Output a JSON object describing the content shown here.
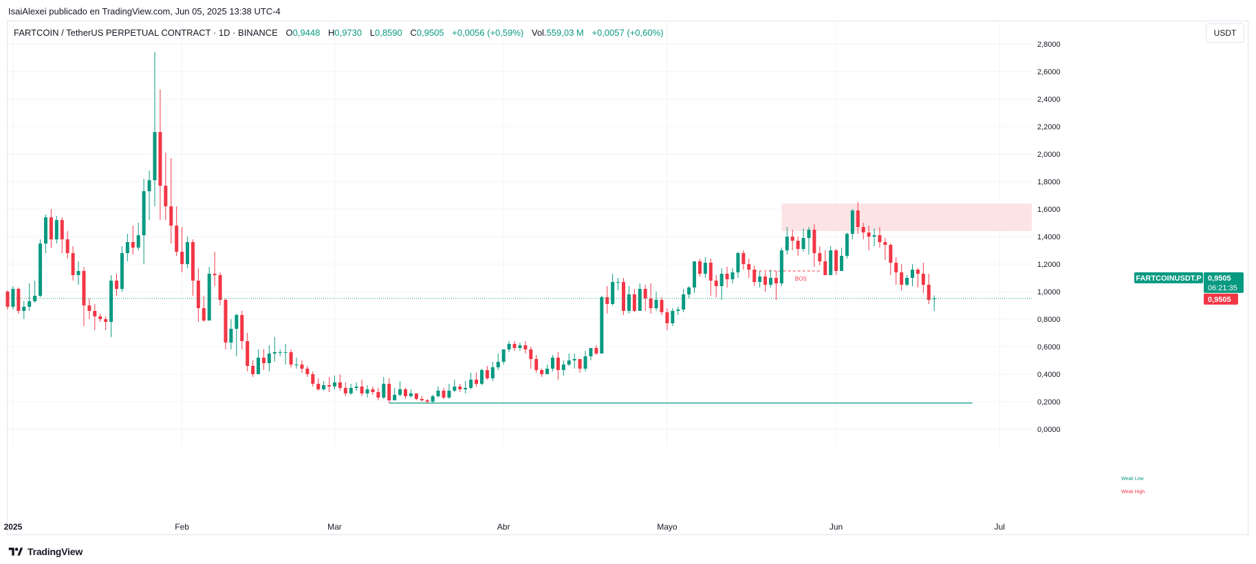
{
  "header": {
    "publisher_line": "IsaiAlexei publicado en TradingView.com, Jun 05, 2025 13:38 UTC-4"
  },
  "legend": {
    "symbol": "FARTCOIN / TetherUS PERPETUAL CONTRACT · 1D · BINANCE",
    "o_label": "O",
    "o": "0,9448",
    "h_label": "H",
    "h": "0,9730",
    "l_label": "L",
    "l": "0,8590",
    "c_label": "C",
    "c": "0,9505",
    "change": "+0,0056 (+0,59%)",
    "vol_label": "Vol.",
    "vol": "559,03 M",
    "vol_change": "+0,0057 (+0,60%)"
  },
  "toolbar": {
    "unit_label": "USDT"
  },
  "footer": {
    "brand": "TradingView"
  },
  "colors": {
    "up": "#089981",
    "down": "#f23645",
    "grid": "#f0f3fa",
    "zone_fill": "#fce4e6",
    "text": "#131722"
  },
  "chart_data": {
    "type": "candlestick",
    "title": "FARTCOIN / TetherUS PERPETUAL CONTRACT · 1D · BINANCE",
    "ylim": [
      0,
      2.8
    ],
    "y_ticks": [
      "2,8000",
      "2,6000",
      "2,4000",
      "2,2000",
      "2,0000",
      "1,8000",
      "1,6000",
      "1,4000",
      "1,2000",
      "1,0000",
      "0,8000",
      "0,6000",
      "0,4000",
      "0,2000",
      "0,0000"
    ],
    "x_ticks": [
      {
        "label": "2025",
        "date": "2025-01-01",
        "bold": true
      },
      {
        "label": "Feb",
        "date": "2025-02-01"
      },
      {
        "label": "Mar",
        "date": "2025-03-01"
      },
      {
        "label": "Abr",
        "date": "2025-04-01"
      },
      {
        "label": "Mayo",
        "date": "2025-05-01"
      },
      {
        "label": "Jun",
        "date": "2025-06-01"
      },
      {
        "label": "Jul",
        "date": "2025-07-01"
      }
    ],
    "x_range": [
      "2024-12-31",
      "2025-07-05"
    ],
    "grid": true,
    "start_date": "2024-12-31",
    "candles": [
      [
        1.0,
        0.89,
        1.01,
        0.87
      ],
      [
        0.89,
        1.02,
        1.04,
        0.87
      ],
      [
        1.02,
        0.86,
        1.03,
        0.84
      ],
      [
        0.86,
        0.89,
        0.93,
        0.8
      ],
      [
        0.89,
        0.93,
        1.06,
        0.86
      ],
      [
        0.93,
        0.97,
        1.08,
        0.92
      ],
      [
        0.97,
        1.35,
        1.38,
        0.96
      ],
      [
        1.35,
        1.54,
        1.56,
        1.28
      ],
      [
        1.54,
        1.38,
        1.6,
        1.32
      ],
      [
        1.38,
        1.52,
        1.55,
        1.35
      ],
      [
        1.52,
        1.38,
        1.54,
        1.28
      ],
      [
        1.38,
        1.28,
        1.44,
        1.24
      ],
      [
        1.28,
        1.12,
        1.33,
        1.08
      ],
      [
        1.12,
        1.15,
        1.22,
        1.05
      ],
      [
        1.15,
        0.9,
        1.18,
        0.75
      ],
      [
        0.9,
        0.86,
        0.95,
        0.8
      ],
      [
        0.86,
        0.82,
        0.91,
        0.72
      ],
      [
        0.82,
        0.8,
        0.84,
        0.78
      ],
      [
        0.8,
        0.78,
        0.82,
        0.72
      ],
      [
        0.78,
        1.08,
        1.12,
        0.67
      ],
      [
        1.08,
        1.02,
        1.13,
        0.97
      ],
      [
        1.02,
        1.28,
        1.33,
        1.0
      ],
      [
        1.28,
        1.36,
        1.42,
        1.22
      ],
      [
        1.36,
        1.32,
        1.48,
        1.27
      ],
      [
        1.32,
        1.41,
        1.5,
        1.3
      ],
      [
        1.41,
        1.73,
        1.82,
        1.2
      ],
      [
        1.73,
        1.81,
        1.88,
        1.52
      ],
      [
        1.81,
        2.16,
        2.74,
        1.62
      ],
      [
        2.16,
        1.77,
        2.47,
        1.52
      ],
      [
        1.77,
        1.62,
        2.01,
        1.52
      ],
      [
        1.62,
        1.48,
        1.97,
        1.35
      ],
      [
        1.48,
        1.29,
        1.62,
        1.26
      ],
      [
        1.29,
        1.2,
        1.47,
        1.14
      ],
      [
        1.2,
        1.36,
        1.4,
        1.17
      ],
      [
        1.36,
        1.08,
        1.38,
        0.97
      ],
      [
        1.08,
        0.88,
        1.17,
        0.78
      ],
      [
        0.88,
        0.79,
        0.97,
        0.78
      ],
      [
        0.79,
        1.13,
        1.18,
        0.83
      ],
      [
        1.13,
        1.12,
        1.29,
        1.04
      ],
      [
        1.12,
        0.94,
        1.14,
        0.9
      ],
      [
        0.94,
        0.63,
        0.95,
        0.58
      ],
      [
        0.63,
        0.73,
        0.8,
        0.58
      ],
      [
        0.73,
        0.83,
        0.84,
        0.53
      ],
      [
        0.83,
        0.64,
        0.86,
        0.58
      ],
      [
        0.64,
        0.46,
        0.7,
        0.42
      ],
      [
        0.46,
        0.4,
        0.5,
        0.38
      ],
      [
        0.4,
        0.52,
        0.58,
        0.4
      ],
      [
        0.52,
        0.48,
        0.58,
        0.43
      ],
      [
        0.48,
        0.55,
        0.61,
        0.42
      ],
      [
        0.55,
        0.56,
        0.67,
        0.49
      ],
      [
        0.56,
        0.56,
        0.58,
        0.53
      ],
      [
        0.56,
        0.56,
        0.62,
        0.47
      ],
      [
        0.56,
        0.47,
        0.58,
        0.45
      ],
      [
        0.47,
        0.47,
        0.52,
        0.44
      ],
      [
        0.47,
        0.44,
        0.5,
        0.41
      ],
      [
        0.44,
        0.4,
        0.46,
        0.38
      ],
      [
        0.4,
        0.33,
        0.42,
        0.31
      ],
      [
        0.33,
        0.29,
        0.37,
        0.28
      ],
      [
        0.29,
        0.32,
        0.35,
        0.28
      ],
      [
        0.32,
        0.31,
        0.38,
        0.27
      ],
      [
        0.31,
        0.34,
        0.39,
        0.29
      ],
      [
        0.34,
        0.3,
        0.4,
        0.28
      ],
      [
        0.3,
        0.26,
        0.34,
        0.24
      ],
      [
        0.26,
        0.3,
        0.33,
        0.25
      ],
      [
        0.3,
        0.31,
        0.34,
        0.28
      ],
      [
        0.31,
        0.26,
        0.36,
        0.24
      ],
      [
        0.26,
        0.29,
        0.32,
        0.23
      ],
      [
        0.29,
        0.27,
        0.31,
        0.25
      ],
      [
        0.27,
        0.23,
        0.3,
        0.21
      ],
      [
        0.23,
        0.33,
        0.38,
        0.22
      ],
      [
        0.33,
        0.21,
        0.37,
        0.19
      ],
      [
        0.21,
        0.25,
        0.3,
        0.21
      ],
      [
        0.25,
        0.29,
        0.35,
        0.24
      ],
      [
        0.29,
        0.24,
        0.3,
        0.22
      ],
      [
        0.24,
        0.26,
        0.29,
        0.23
      ],
      [
        0.26,
        0.22,
        0.25,
        0.21
      ],
      [
        0.22,
        0.21,
        0.24,
        0.2
      ],
      [
        0.21,
        0.2,
        0.22,
        0.19
      ],
      [
        0.2,
        0.24,
        0.25,
        0.19
      ],
      [
        0.24,
        0.28,
        0.31,
        0.23
      ],
      [
        0.28,
        0.23,
        0.3,
        0.22
      ],
      [
        0.23,
        0.28,
        0.33,
        0.22
      ],
      [
        0.28,
        0.31,
        0.36,
        0.27
      ],
      [
        0.31,
        0.29,
        0.33,
        0.27
      ],
      [
        0.29,
        0.3,
        0.35,
        0.26
      ],
      [
        0.3,
        0.36,
        0.41,
        0.29
      ],
      [
        0.36,
        0.33,
        0.41,
        0.31
      ],
      [
        0.33,
        0.43,
        0.44,
        0.32
      ],
      [
        0.43,
        0.37,
        0.46,
        0.36
      ],
      [
        0.37,
        0.45,
        0.49,
        0.35
      ],
      [
        0.45,
        0.49,
        0.55,
        0.43
      ],
      [
        0.49,
        0.58,
        0.58,
        0.47
      ],
      [
        0.58,
        0.62,
        0.64,
        0.56
      ],
      [
        0.62,
        0.59,
        0.64,
        0.57
      ],
      [
        0.59,
        0.61,
        0.63,
        0.57
      ],
      [
        0.61,
        0.58,
        0.64,
        0.55
      ],
      [
        0.58,
        0.51,
        0.6,
        0.44
      ],
      [
        0.51,
        0.43,
        0.54,
        0.41
      ],
      [
        0.43,
        0.4,
        0.44,
        0.38
      ],
      [
        0.4,
        0.44,
        0.47,
        0.4
      ],
      [
        0.44,
        0.52,
        0.54,
        0.42
      ],
      [
        0.52,
        0.43,
        0.56,
        0.36
      ],
      [
        0.43,
        0.47,
        0.5,
        0.39
      ],
      [
        0.47,
        0.5,
        0.55,
        0.46
      ],
      [
        0.5,
        0.51,
        0.55,
        0.44
      ],
      [
        0.51,
        0.44,
        0.51,
        0.41
      ],
      [
        0.44,
        0.53,
        0.57,
        0.42
      ],
      [
        0.53,
        0.59,
        0.59,
        0.5
      ],
      [
        0.59,
        0.55,
        0.61,
        0.54
      ],
      [
        0.55,
        0.96,
        0.97,
        0.55
      ],
      [
        0.96,
        0.91,
        1.04,
        0.84
      ],
      [
        0.91,
        1.07,
        1.13,
        0.9
      ],
      [
        1.07,
        1.07,
        1.1,
        1.01
      ],
      [
        1.07,
        0.86,
        1.1,
        0.83
      ],
      [
        0.86,
        0.98,
        1.04,
        0.84
      ],
      [
        0.98,
        0.86,
        1.02,
        0.85
      ],
      [
        0.86,
        1.02,
        1.06,
        0.86
      ],
      [
        1.02,
        0.95,
        1.05,
        0.86
      ],
      [
        0.95,
        0.88,
        1.06,
        0.84
      ],
      [
        0.88,
        0.94,
        1.0,
        0.86
      ],
      [
        0.94,
        0.85,
        0.96,
        0.83
      ],
      [
        0.85,
        0.77,
        0.88,
        0.72
      ],
      [
        0.77,
        0.86,
        0.88,
        0.75
      ],
      [
        0.86,
        0.87,
        0.89,
        0.83
      ],
      [
        0.87,
        0.98,
        1.02,
        0.85
      ],
      [
        0.98,
        1.03,
        1.04,
        0.95
      ],
      [
        1.03,
        1.22,
        1.22,
        0.99
      ],
      [
        1.22,
        1.13,
        1.24,
        1.11
      ],
      [
        1.13,
        1.21,
        1.25,
        1.1
      ],
      [
        1.21,
        1.08,
        1.24,
        0.97
      ],
      [
        1.08,
        1.04,
        1.12,
        0.96
      ],
      [
        1.04,
        1.13,
        1.17,
        0.94
      ],
      [
        1.13,
        1.09,
        1.18,
        1.03
      ],
      [
        1.09,
        1.14,
        1.17,
        1.06
      ],
      [
        1.14,
        1.28,
        1.29,
        1.1
      ],
      [
        1.28,
        1.2,
        1.3,
        1.16
      ],
      [
        1.2,
        1.16,
        1.24,
        1.1
      ],
      [
        1.16,
        1.07,
        1.19,
        1.04
      ],
      [
        1.07,
        1.11,
        1.15,
        1.03
      ],
      [
        1.11,
        1.05,
        1.14,
        1.0
      ],
      [
        1.05,
        1.1,
        1.16,
        1.03
      ],
      [
        1.1,
        1.06,
        1.15,
        0.94
      ],
      [
        1.06,
        1.3,
        1.32,
        1.04
      ],
      [
        1.3,
        1.4,
        1.47,
        1.27
      ],
      [
        1.4,
        1.37,
        1.45,
        1.3
      ],
      [
        1.37,
        1.31,
        1.4,
        1.26
      ],
      [
        1.31,
        1.39,
        1.46,
        1.29
      ],
      [
        1.39,
        1.45,
        1.47,
        1.27
      ],
      [
        1.45,
        1.28,
        1.49,
        1.18
      ],
      [
        1.28,
        1.22,
        1.33,
        1.19
      ],
      [
        1.22,
        1.12,
        1.3,
        1.12
      ],
      [
        1.12,
        1.3,
        1.33,
        1.19
      ],
      [
        1.3,
        1.15,
        1.31,
        1.12
      ],
      [
        1.15,
        1.26,
        1.32,
        1.16
      ],
      [
        1.26,
        1.42,
        1.43,
        1.24
      ],
      [
        1.42,
        1.59,
        1.6,
        1.38
      ],
      [
        1.59,
        1.47,
        1.65,
        1.42
      ],
      [
        1.47,
        1.43,
        1.5,
        1.38
      ],
      [
        1.43,
        1.4,
        1.48,
        1.3
      ],
      [
        1.4,
        1.41,
        1.46,
        1.33
      ],
      [
        1.41,
        1.36,
        1.47,
        1.32
      ],
      [
        1.36,
        1.34,
        1.39,
        1.23
      ],
      [
        1.34,
        1.21,
        1.35,
        1.12
      ],
      [
        1.21,
        1.14,
        1.25,
        1.05
      ],
      [
        1.14,
        1.05,
        1.2,
        1.01
      ],
      [
        1.05,
        1.1,
        1.12,
        1.04
      ],
      [
        1.1,
        1.16,
        1.2,
        1.04
      ],
      [
        1.16,
        1.13,
        1.17,
        1.03
      ],
      [
        1.13,
        1.05,
        1.21,
        0.99
      ],
      [
        1.05,
        0.94,
        1.13,
        0.91
      ],
      [
        0.9448,
        0.9505,
        0.973,
        0.859
      ]
    ],
    "candles_format": "[open, close, high, low], one per day from start_date",
    "annotations": {
      "supply_zone": {
        "from": "2025-05-22",
        "to": "2025-07-01",
        "low": 1.44,
        "high": 1.64
      },
      "bos": {
        "label": "BOS",
        "level": 1.15,
        "from": "2025-05-17",
        "to": "2025-05-29"
      },
      "weak_low": {
        "label": "Weak Low",
        "level": 0.19,
        "from": "2025-03-11",
        "to": "2025-06-26"
      },
      "weak_high": {
        "label": "Weak High"
      }
    },
    "price_line": 0.9505,
    "price_labels": {
      "symbol_tag": "FARTCOINUSDT.P",
      "last_price": "0,9505",
      "countdown": "06:21:35",
      "close_price": "0,9505"
    }
  }
}
